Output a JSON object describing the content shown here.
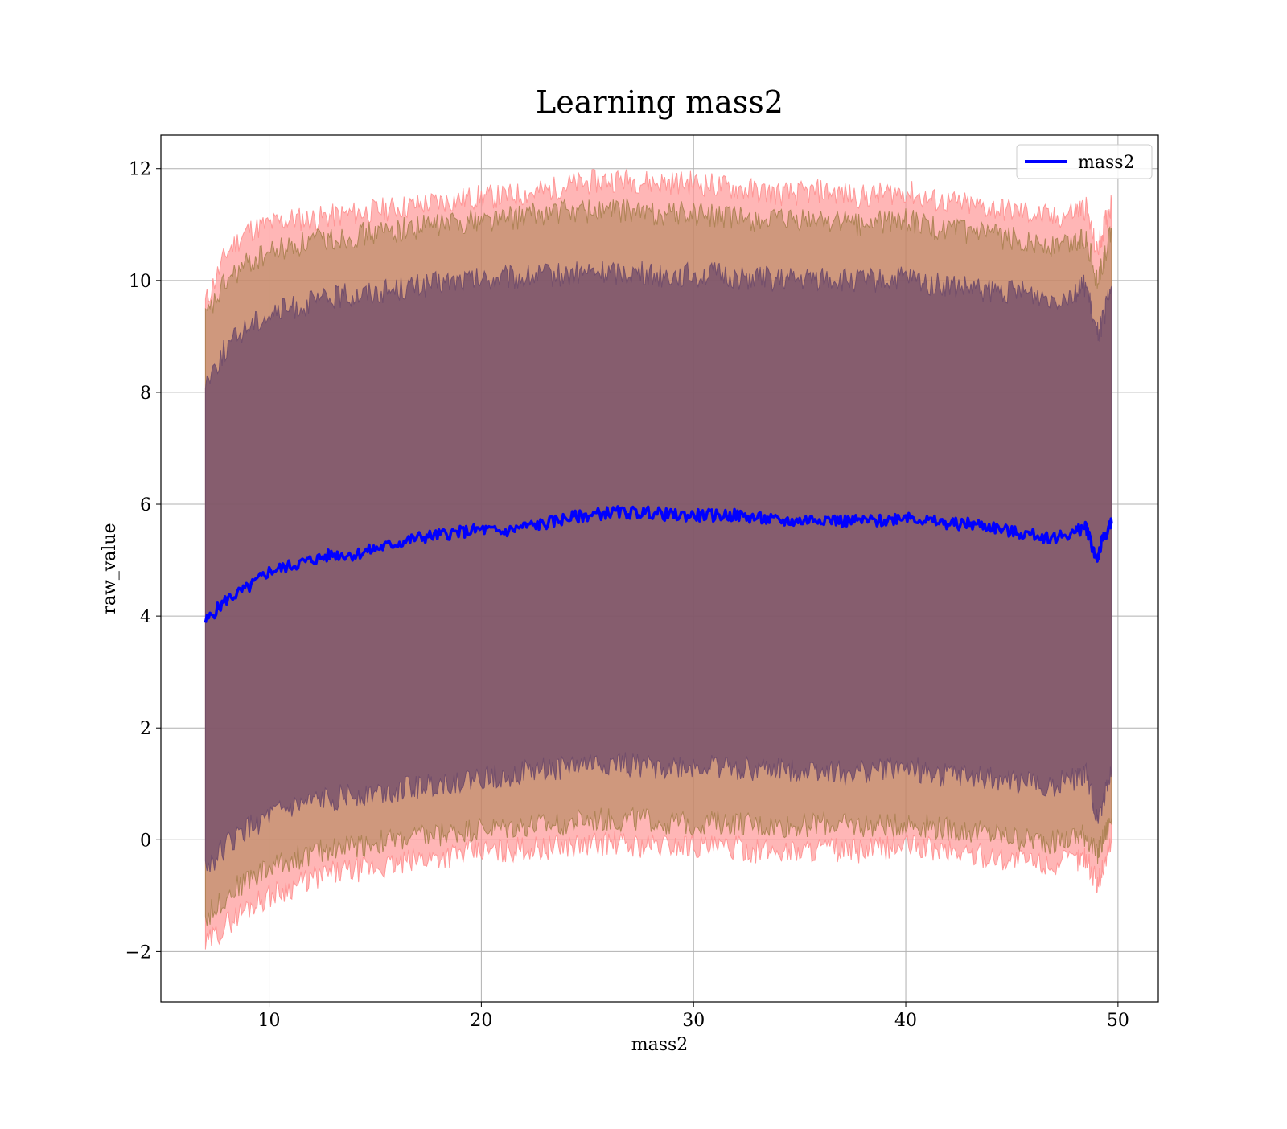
{
  "chart_data": {
    "type": "line",
    "title": "Learning mass2",
    "xlabel": "mass2",
    "ylabel": "raw_value",
    "xlim": [
      4.9,
      51.9
    ],
    "ylim": [
      -2.9,
      12.6
    ],
    "xticks": [
      10,
      20,
      30,
      40,
      50
    ],
    "xtick_labels": [
      "10",
      "20",
      "30",
      "40",
      "50"
    ],
    "yticks": [
      -2,
      0,
      2,
      4,
      6,
      8,
      10,
      12
    ],
    "ytick_labels": [
      "−2",
      "0",
      "2",
      "4",
      "6",
      "8",
      "10",
      "12"
    ],
    "grid": true,
    "legend": {
      "position": "top-right",
      "entries": [
        "mass2"
      ]
    },
    "colors": {
      "line": "#0000ff",
      "band_outer": "#ff8f8f",
      "band_mid": "#a8804f",
      "band_inner": "#6e4a6a"
    },
    "series": [
      {
        "name": "mass2",
        "x": [
          7.0,
          8.0,
          9.0,
          10.0,
          11.0,
          12.0,
          13.0,
          14.0,
          15.0,
          16.0,
          17.0,
          18.0,
          19.0,
          20.0,
          21.0,
          22.0,
          23.0,
          24.0,
          25.0,
          26.0,
          27.0,
          28.0,
          29.0,
          30.0,
          31.0,
          32.0,
          33.0,
          34.0,
          35.0,
          36.0,
          37.0,
          38.0,
          39.0,
          40.0,
          41.0,
          42.0,
          43.0,
          44.0,
          45.0,
          46.0,
          47.0,
          48.0,
          48.5,
          49.0,
          49.3,
          49.7
        ],
        "y": [
          3.9,
          4.3,
          4.5,
          4.8,
          4.9,
          5.0,
          5.1,
          5.1,
          5.2,
          5.3,
          5.4,
          5.45,
          5.5,
          5.55,
          5.5,
          5.6,
          5.65,
          5.75,
          5.8,
          5.85,
          5.85,
          5.85,
          5.8,
          5.8,
          5.8,
          5.8,
          5.75,
          5.7,
          5.7,
          5.75,
          5.7,
          5.7,
          5.7,
          5.8,
          5.7,
          5.65,
          5.65,
          5.6,
          5.5,
          5.45,
          5.4,
          5.5,
          5.6,
          5.0,
          5.4,
          5.65
        ]
      }
    ],
    "bands": [
      {
        "name": "outer",
        "upper": [
          9.6,
          10.5,
          10.9,
          11.0,
          11.1,
          11.1,
          11.15,
          11.2,
          11.25,
          11.3,
          11.35,
          11.4,
          11.45,
          11.5,
          11.5,
          11.55,
          11.6,
          11.7,
          11.75,
          11.8,
          11.8,
          11.75,
          11.75,
          11.75,
          11.7,
          11.65,
          11.6,
          11.55,
          11.55,
          11.6,
          11.55,
          11.5,
          11.55,
          11.6,
          11.45,
          11.4,
          11.35,
          11.3,
          11.25,
          11.2,
          11.1,
          11.25,
          11.3,
          10.5,
          10.9,
          11.4
        ],
        "lower": [
          -1.9,
          -1.5,
          -1.2,
          -1.0,
          -0.85,
          -0.7,
          -0.6,
          -0.55,
          -0.5,
          -0.45,
          -0.35,
          -0.3,
          -0.25,
          -0.2,
          -0.2,
          -0.15,
          -0.15,
          -0.1,
          -0.1,
          -0.05,
          -0.1,
          -0.1,
          -0.1,
          -0.1,
          -0.15,
          -0.15,
          -0.2,
          -0.2,
          -0.2,
          -0.15,
          -0.2,
          -0.2,
          -0.15,
          -0.1,
          -0.15,
          -0.2,
          -0.25,
          -0.3,
          -0.35,
          -0.4,
          -0.45,
          -0.35,
          -0.3,
          -0.8,
          -0.5,
          0.0
        ]
      },
      {
        "name": "middle",
        "upper": [
          9.3,
          10.0,
          10.3,
          10.5,
          10.6,
          10.7,
          10.75,
          10.8,
          10.85,
          10.9,
          10.95,
          11.0,
          11.05,
          11.1,
          11.1,
          11.15,
          11.2,
          11.25,
          11.25,
          11.25,
          11.25,
          11.2,
          11.2,
          11.2,
          11.15,
          11.1,
          11.1,
          11.05,
          11.05,
          11.1,
          11.05,
          11.0,
          11.05,
          11.1,
          10.95,
          10.9,
          10.85,
          10.8,
          10.75,
          10.7,
          10.6,
          10.7,
          10.8,
          10.0,
          10.3,
          10.9
        ],
        "lower": [
          -1.4,
          -1.0,
          -0.7,
          -0.5,
          -0.35,
          -0.25,
          -0.15,
          -0.1,
          -0.05,
          0.0,
          0.05,
          0.1,
          0.15,
          0.2,
          0.2,
          0.25,
          0.25,
          0.3,
          0.35,
          0.35,
          0.35,
          0.35,
          0.3,
          0.3,
          0.3,
          0.3,
          0.25,
          0.25,
          0.25,
          0.3,
          0.25,
          0.25,
          0.25,
          0.3,
          0.25,
          0.2,
          0.15,
          0.1,
          0.05,
          0.0,
          -0.05,
          0.05,
          0.1,
          -0.3,
          0.0,
          0.4
        ]
      },
      {
        "name": "inner",
        "upper": [
          8.2,
          8.8,
          9.2,
          9.4,
          9.5,
          9.6,
          9.7,
          9.75,
          9.8,
          9.85,
          9.9,
          9.95,
          10.0,
          10.0,
          10.05,
          10.05,
          10.1,
          10.1,
          10.15,
          10.15,
          10.15,
          10.1,
          10.1,
          10.1,
          10.1,
          10.05,
          10.05,
          10.0,
          10.0,
          10.05,
          10.0,
          10.0,
          10.0,
          10.05,
          9.95,
          9.9,
          9.85,
          9.8,
          9.8,
          9.75,
          9.7,
          9.8,
          9.9,
          9.0,
          9.3,
          9.9
        ],
        "lower": [
          -0.5,
          -0.1,
          0.2,
          0.4,
          0.55,
          0.65,
          0.75,
          0.8,
          0.85,
          0.9,
          0.95,
          1.0,
          1.05,
          1.1,
          1.15,
          1.2,
          1.25,
          1.3,
          1.35,
          1.35,
          1.35,
          1.3,
          1.3,
          1.3,
          1.3,
          1.3,
          1.25,
          1.25,
          1.25,
          1.25,
          1.2,
          1.2,
          1.25,
          1.3,
          1.2,
          1.15,
          1.1,
          1.1,
          1.05,
          1.0,
          1.0,
          1.1,
          1.15,
          0.4,
          0.7,
          1.3
        ]
      }
    ]
  }
}
